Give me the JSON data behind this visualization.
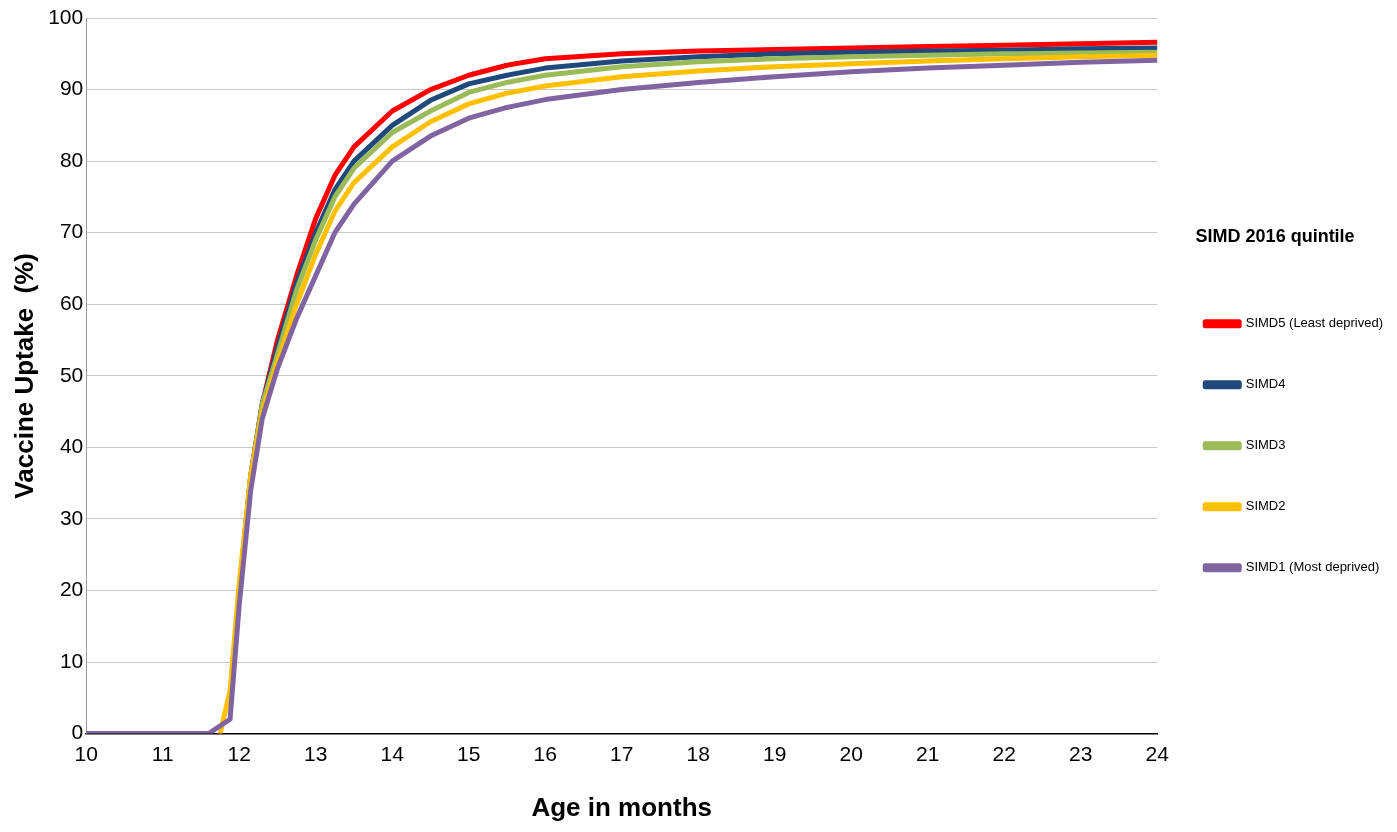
{
  "chart_data": {
    "type": "line",
    "xlabel": "Age in months",
    "ylabel": "Vaccine Uptake  (%)",
    "legend_title": "SIMD 2016 quintile",
    "legend": "right",
    "grid": "y",
    "marker": "none",
    "line_style": "solid",
    "x": [
      10,
      11.6,
      11.75,
      11.88,
      12.0,
      12.15,
      12.3,
      12.5,
      12.75,
      13.0,
      13.25,
      13.5,
      14.0,
      14.5,
      15.0,
      15.5,
      16,
      17,
      18,
      19,
      20,
      21,
      22,
      23,
      24
    ],
    "xlim": [
      10,
      24
    ],
    "xticks": [
      10,
      11,
      12,
      13,
      14,
      15,
      16,
      17,
      18,
      19,
      20,
      21,
      22,
      23,
      24
    ],
    "ylim": [
      0,
      100
    ],
    "yticks": [
      0,
      10,
      20,
      30,
      40,
      50,
      60,
      70,
      80,
      90,
      100
    ],
    "series": [
      {
        "name": "SIMD5 (Least deprived)",
        "color": "#ff0000",
        "values": [
          null,
          null,
          null,
          null,
          20,
          36,
          46,
          55,
          64,
          72,
          78,
          82,
          87,
          90,
          92,
          93.4,
          94.3,
          95,
          95.4,
          95.6,
          95.8,
          96,
          96.2,
          96.4,
          96.6
        ]
      },
      {
        "name": "SIMD4",
        "color": "#1f497d",
        "values": [
          null,
          null,
          null,
          null,
          20,
          36,
          46,
          54,
          63,
          70,
          76,
          80,
          85,
          88.5,
          90.8,
          92,
          93,
          94,
          94.6,
          95,
          95.2,
          95.4,
          95.5,
          95.7,
          95.8
        ]
      },
      {
        "name": "SIMD3",
        "color": "#9bbb59",
        "values": [
          null,
          null,
          null,
          null,
          20,
          36,
          46,
          53,
          62,
          69,
          75,
          79,
          84,
          87,
          89.6,
          91,
          92,
          93.2,
          93.9,
          94.3,
          94.6,
          94.8,
          95,
          95.1,
          95.2
        ]
      },
      {
        "name": "SIMD2",
        "color": "#ffc000",
        "values": [
          null,
          null,
          0,
          6,
          21,
          36,
          45,
          52,
          60,
          67,
          73,
          77,
          82,
          85.5,
          88,
          89.5,
          90.5,
          91.8,
          92.6,
          93.2,
          93.6,
          94,
          94.3,
          94.6,
          94.8
        ]
      },
      {
        "name": "SIMD1 (Most deprived)",
        "color": "#8064a2",
        "values": [
          0,
          0,
          null,
          2,
          18,
          34,
          44,
          51,
          58,
          64,
          70,
          74,
          80,
          83.5,
          86,
          87.5,
          88.6,
          90,
          91,
          91.8,
          92.5,
          93,
          93.4,
          93.8,
          94.1
        ]
      }
    ]
  }
}
